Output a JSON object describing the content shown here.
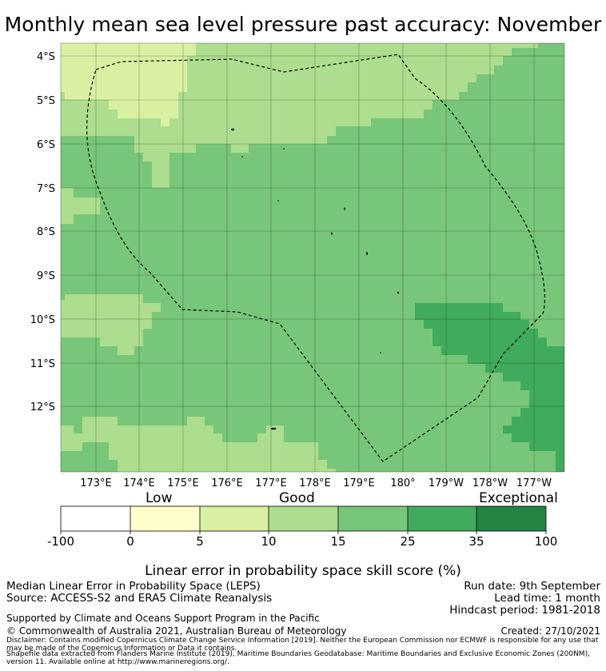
{
  "title": "Monthly mean sea level pressure past accuracy: November",
  "map": {
    "lat_labels": [
      "4°S",
      "5°S",
      "6°S",
      "7°S",
      "8°S",
      "9°S",
      "10°S",
      "11°S",
      "12°S"
    ],
    "lon_labels": [
      "173°E",
      "174°E",
      "175°E",
      "176°E",
      "177°E",
      "178°E",
      "179°E",
      "180°",
      "179°W",
      "178°W",
      "177°W"
    ],
    "boundary_style": "dashed",
    "grid": true
  },
  "colorbar": {
    "category_words": [
      "Low",
      "Good",
      "Exceptional"
    ],
    "ticks": [
      "-100",
      "0",
      "5",
      "10",
      "15",
      "25",
      "35",
      "100"
    ],
    "colors": [
      "#ffffff",
      "#ffffcc",
      "#d9f0a3",
      "#addd8e",
      "#78c679",
      "#41ab5d",
      "#238443"
    ],
    "label": "Linear error in probability space skill score (%)"
  },
  "footer": {
    "left1": "Median Linear Error in Probability Space (LEPS)",
    "left2": "Source: ACCESS-S2 and ERA5 Climate Reanalysis",
    "left3": "Supported by Climate and Oceans Support Program in the Pacific",
    "left4": "© Commonwealth of Australia 2021, Australian Bureau of Meteorology",
    "right1": "Run date: 9th September",
    "right2": "Lead time: 1 month",
    "right3": "Hindcast period: 1981-2018",
    "right4": "Created: 27/10/2021",
    "disclaimer": "Disclaimer: Contains modified Copernicus Climate Change Service Information [2019]. Neither the European Commission nor ECMWF is responsible for any use that may be made of the Copernicus Information or Data it contains.",
    "shapefile": "Shapefile data extracted from Flanders Marine Institute (2019), Maritime Boundaries Geodatabase: Maritime Boundaries and Exclusive Economic Zones (200NM), version 11. Available online at http://www.marineregions.org/."
  }
}
